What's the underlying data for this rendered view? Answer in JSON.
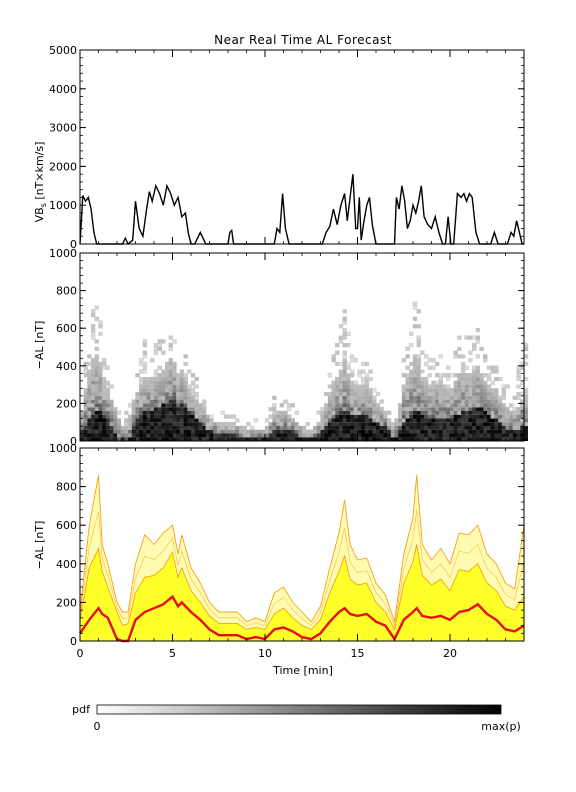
{
  "chart_data": {
    "type": "multi-panel",
    "title": "Near Real Time AL Forecast",
    "xlabel": "Time [min]",
    "xlim": [
      0,
      24
    ],
    "xticks": [
      0,
      5,
      10,
      15,
      20
    ],
    "panels": [
      {
        "id": "vbs",
        "type": "line",
        "ylabel": "VB_s [nT×km/s]",
        "ylim": [
          0,
          5000
        ],
        "yticks": [
          0,
          1000,
          2000,
          3000,
          4000,
          5000
        ],
        "series": [
          {
            "color": "#000000",
            "x": [
              0,
              0.15,
              0.3,
              0.45,
              0.6,
              0.75,
              0.9,
              1.1,
              1.5,
              2.0,
              2.3,
              2.45,
              2.6,
              2.85,
              3.0,
              3.2,
              3.4,
              3.6,
              3.75,
              3.9,
              4.1,
              4.3,
              4.5,
              4.7,
              4.9,
              5.1,
              5.3,
              5.5,
              5.7,
              5.85,
              6.0,
              6.2,
              6.5,
              6.8,
              7.2,
              8.0,
              8.1,
              8.2,
              8.3,
              9.0,
              9.5,
              10.5,
              10.65,
              10.8,
              10.95,
              11.1,
              11.3,
              11.6,
              11.8,
              12.0,
              12.2,
              12.5,
              13.1,
              13.3,
              13.5,
              13.7,
              13.9,
              14.1,
              14.3,
              14.45,
              14.6,
              14.75,
              14.9,
              15.0,
              15.1,
              15.2,
              15.35,
              15.5,
              15.65,
              15.8,
              16.0,
              16.5,
              17.0,
              17.1,
              17.25,
              17.4,
              17.55,
              17.7,
              17.85,
              18.0,
              18.15,
              18.3,
              18.45,
              18.6,
              18.8,
              19.0,
              19.2,
              19.4,
              19.6,
              19.75,
              19.9,
              20.05,
              20.2,
              20.4,
              20.6,
              20.75,
              20.9,
              21.05,
              21.2,
              21.4,
              21.6,
              21.8,
              22.0,
              22.2,
              22.4,
              22.6,
              22.75,
              22.9,
              23.1,
              23.3,
              23.45,
              23.6,
              23.75,
              23.9,
              24.0
            ],
            "y": [
              0,
              1250,
              1100,
              1200,
              900,
              300,
              0,
              0,
              0,
              0,
              0,
              150,
              0,
              100,
              1100,
              400,
              200,
              900,
              1350,
              1100,
              1500,
              1300,
              1000,
              1500,
              1300,
              1000,
              1200,
              700,
              800,
              300,
              0,
              0,
              300,
              0,
              0,
              0,
              300,
              350,
              0,
              0,
              0,
              0,
              400,
              300,
              1300,
              400,
              0,
              0,
              0,
              0,
              0,
              0,
              0,
              300,
              450,
              900,
              500,
              1000,
              1300,
              600,
              1200,
              1800,
              400,
              400,
              1200,
              100,
              600,
              1000,
              1200,
              500,
              0,
              0,
              0,
              1200,
              900,
              1500,
              1100,
              400,
              600,
              1000,
              800,
              1100,
              1500,
              700,
              500,
              400,
              700,
              300,
              0,
              0,
              700,
              0,
              0,
              1300,
              1200,
              1300,
              1100,
              1300,
              1200,
              300,
              0,
              0,
              0,
              0,
              300,
              0,
              0,
              0,
              0,
              300,
              200,
              600,
              300,
              0,
              0
            ]
          }
        ]
      },
      {
        "id": "al-pdf",
        "type": "heatmap",
        "ylabel": "−AL [nT]",
        "ylim": [
          0,
          1000
        ],
        "yticks": [
          0,
          200,
          400,
          600,
          800,
          1000
        ],
        "colorbar": {
          "label": "pdf",
          "min_label": "0",
          "max_label": "max(p)",
          "colors": [
            "#ffffff",
            "#000000"
          ]
        }
      },
      {
        "id": "al-forecast",
        "type": "area",
        "ylabel": "−AL [nT]",
        "ylim": [
          0,
          1000
        ],
        "yticks": [
          0,
          200,
          400,
          600,
          800,
          1000
        ],
        "x": [
          0,
          0.5,
          1.0,
          1.2,
          1.5,
          2.0,
          2.3,
          2.6,
          3.0,
          3.5,
          4.0,
          4.5,
          5.0,
          5.3,
          5.5,
          6.0,
          6.5,
          7.0,
          7.5,
          8.0,
          8.5,
          9.0,
          9.5,
          10.0,
          10.5,
          11.0,
          11.5,
          12.0,
          12.5,
          13.0,
          13.5,
          14.0,
          14.3,
          14.6,
          15.0,
          15.5,
          16.0,
          16.5,
          17.0,
          17.5,
          18.0,
          18.2,
          18.5,
          19.0,
          19.5,
          20.0,
          20.5,
          21.0,
          21.5,
          22.0,
          22.5,
          23.0,
          23.5,
          24.0
        ],
        "series": [
          {
            "name": "envelope_max",
            "color": "#f6a01a",
            "fill": "#fffbb0",
            "values": [
              150,
              600,
              860,
              500,
              400,
              200,
              150,
              150,
              400,
              550,
              500,
              560,
              600,
              450,
              550,
              380,
              300,
              200,
              150,
              150,
              150,
              100,
              120,
              100,
              250,
              280,
              200,
              150,
              100,
              180,
              380,
              560,
              730,
              500,
              420,
              430,
              300,
              240,
              100,
              450,
              640,
              860,
              500,
              420,
              480,
              400,
              560,
              550,
              600,
              450,
              400,
              300,
              270,
              600
            ]
          },
          {
            "name": "inner_band",
            "color": "#f6a01a",
            "fill": "#ffff2a",
            "values": [
              110,
              380,
              480,
              360,
              280,
              150,
              80,
              90,
              250,
              330,
              340,
              380,
              460,
              330,
              380,
              260,
              200,
              130,
              90,
              90,
              90,
              60,
              70,
              60,
              140,
              170,
              120,
              80,
              60,
              110,
              250,
              360,
              440,
              320,
              290,
              300,
              200,
              150,
              60,
              300,
              410,
              500,
              340,
              290,
              320,
              260,
              370,
              360,
              400,
              300,
              260,
              180,
              160,
              230
            ]
          },
          {
            "name": "median",
            "color": "#e50f0f",
            "values": [
              40,
              110,
              170,
              140,
              120,
              10,
              0,
              0,
              110,
              150,
              170,
              190,
              230,
              180,
              200,
              150,
              110,
              60,
              30,
              30,
              30,
              10,
              20,
              10,
              60,
              70,
              50,
              20,
              10,
              40,
              100,
              150,
              170,
              140,
              130,
              140,
              100,
              80,
              10,
              110,
              150,
              170,
              130,
              120,
              130,
              110,
              150,
              160,
              190,
              140,
              110,
              60,
              50,
              80
            ]
          }
        ]
      }
    ]
  }
}
